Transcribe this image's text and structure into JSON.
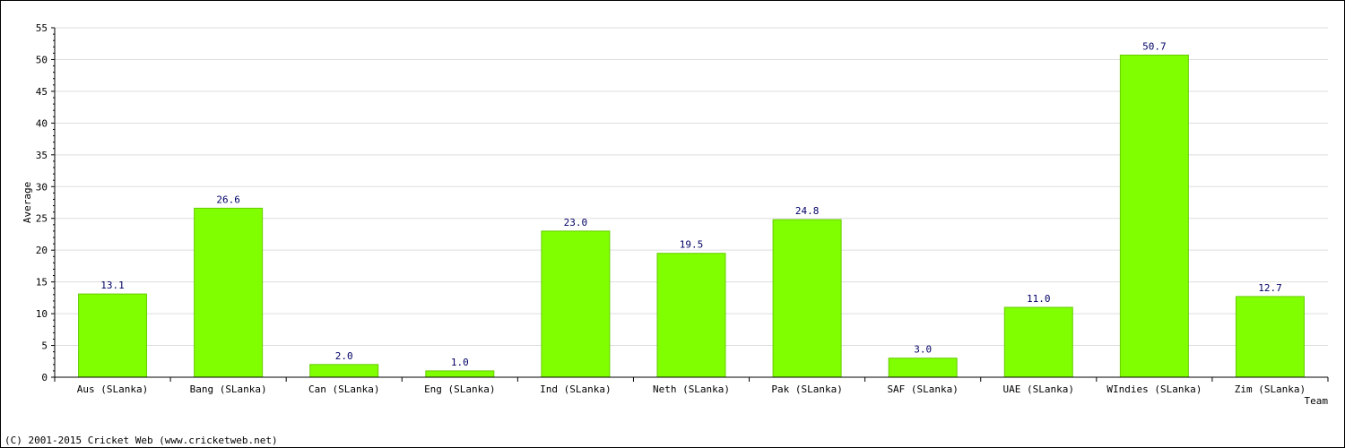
{
  "chart_data": {
    "type": "bar",
    "categories": [
      "Aus (SLanka)",
      "Bang (SLanka)",
      "Can (SLanka)",
      "Eng (SLanka)",
      "Ind (SLanka)",
      "Neth (SLanka)",
      "Pak (SLanka)",
      "SAF (SLanka)",
      "UAE (SLanka)",
      "WIndies (SLanka)",
      "Zim (SLanka)"
    ],
    "values": [
      13.1,
      26.6,
      2.0,
      1.0,
      23.0,
      19.5,
      24.8,
      3.0,
      11.0,
      50.7,
      12.7
    ],
    "value_labels": [
      "13.1",
      "26.6",
      "2.0",
      "1.0",
      "23.0",
      "19.5",
      "24.8",
      "3.0",
      "11.0",
      "50.7",
      "12.7"
    ],
    "xlabel": "Team",
    "ylabel": "Average",
    "ylim": [
      0,
      55
    ],
    "yticks": [
      0,
      5,
      10,
      15,
      20,
      25,
      30,
      35,
      40,
      45,
      50,
      55
    ],
    "grid": true,
    "bar_color": "#80ff00",
    "value_label_color": "#000066"
  },
  "footer": {
    "copyright": "(C) 2001-2015 Cricket Web (www.cricketweb.net)"
  }
}
